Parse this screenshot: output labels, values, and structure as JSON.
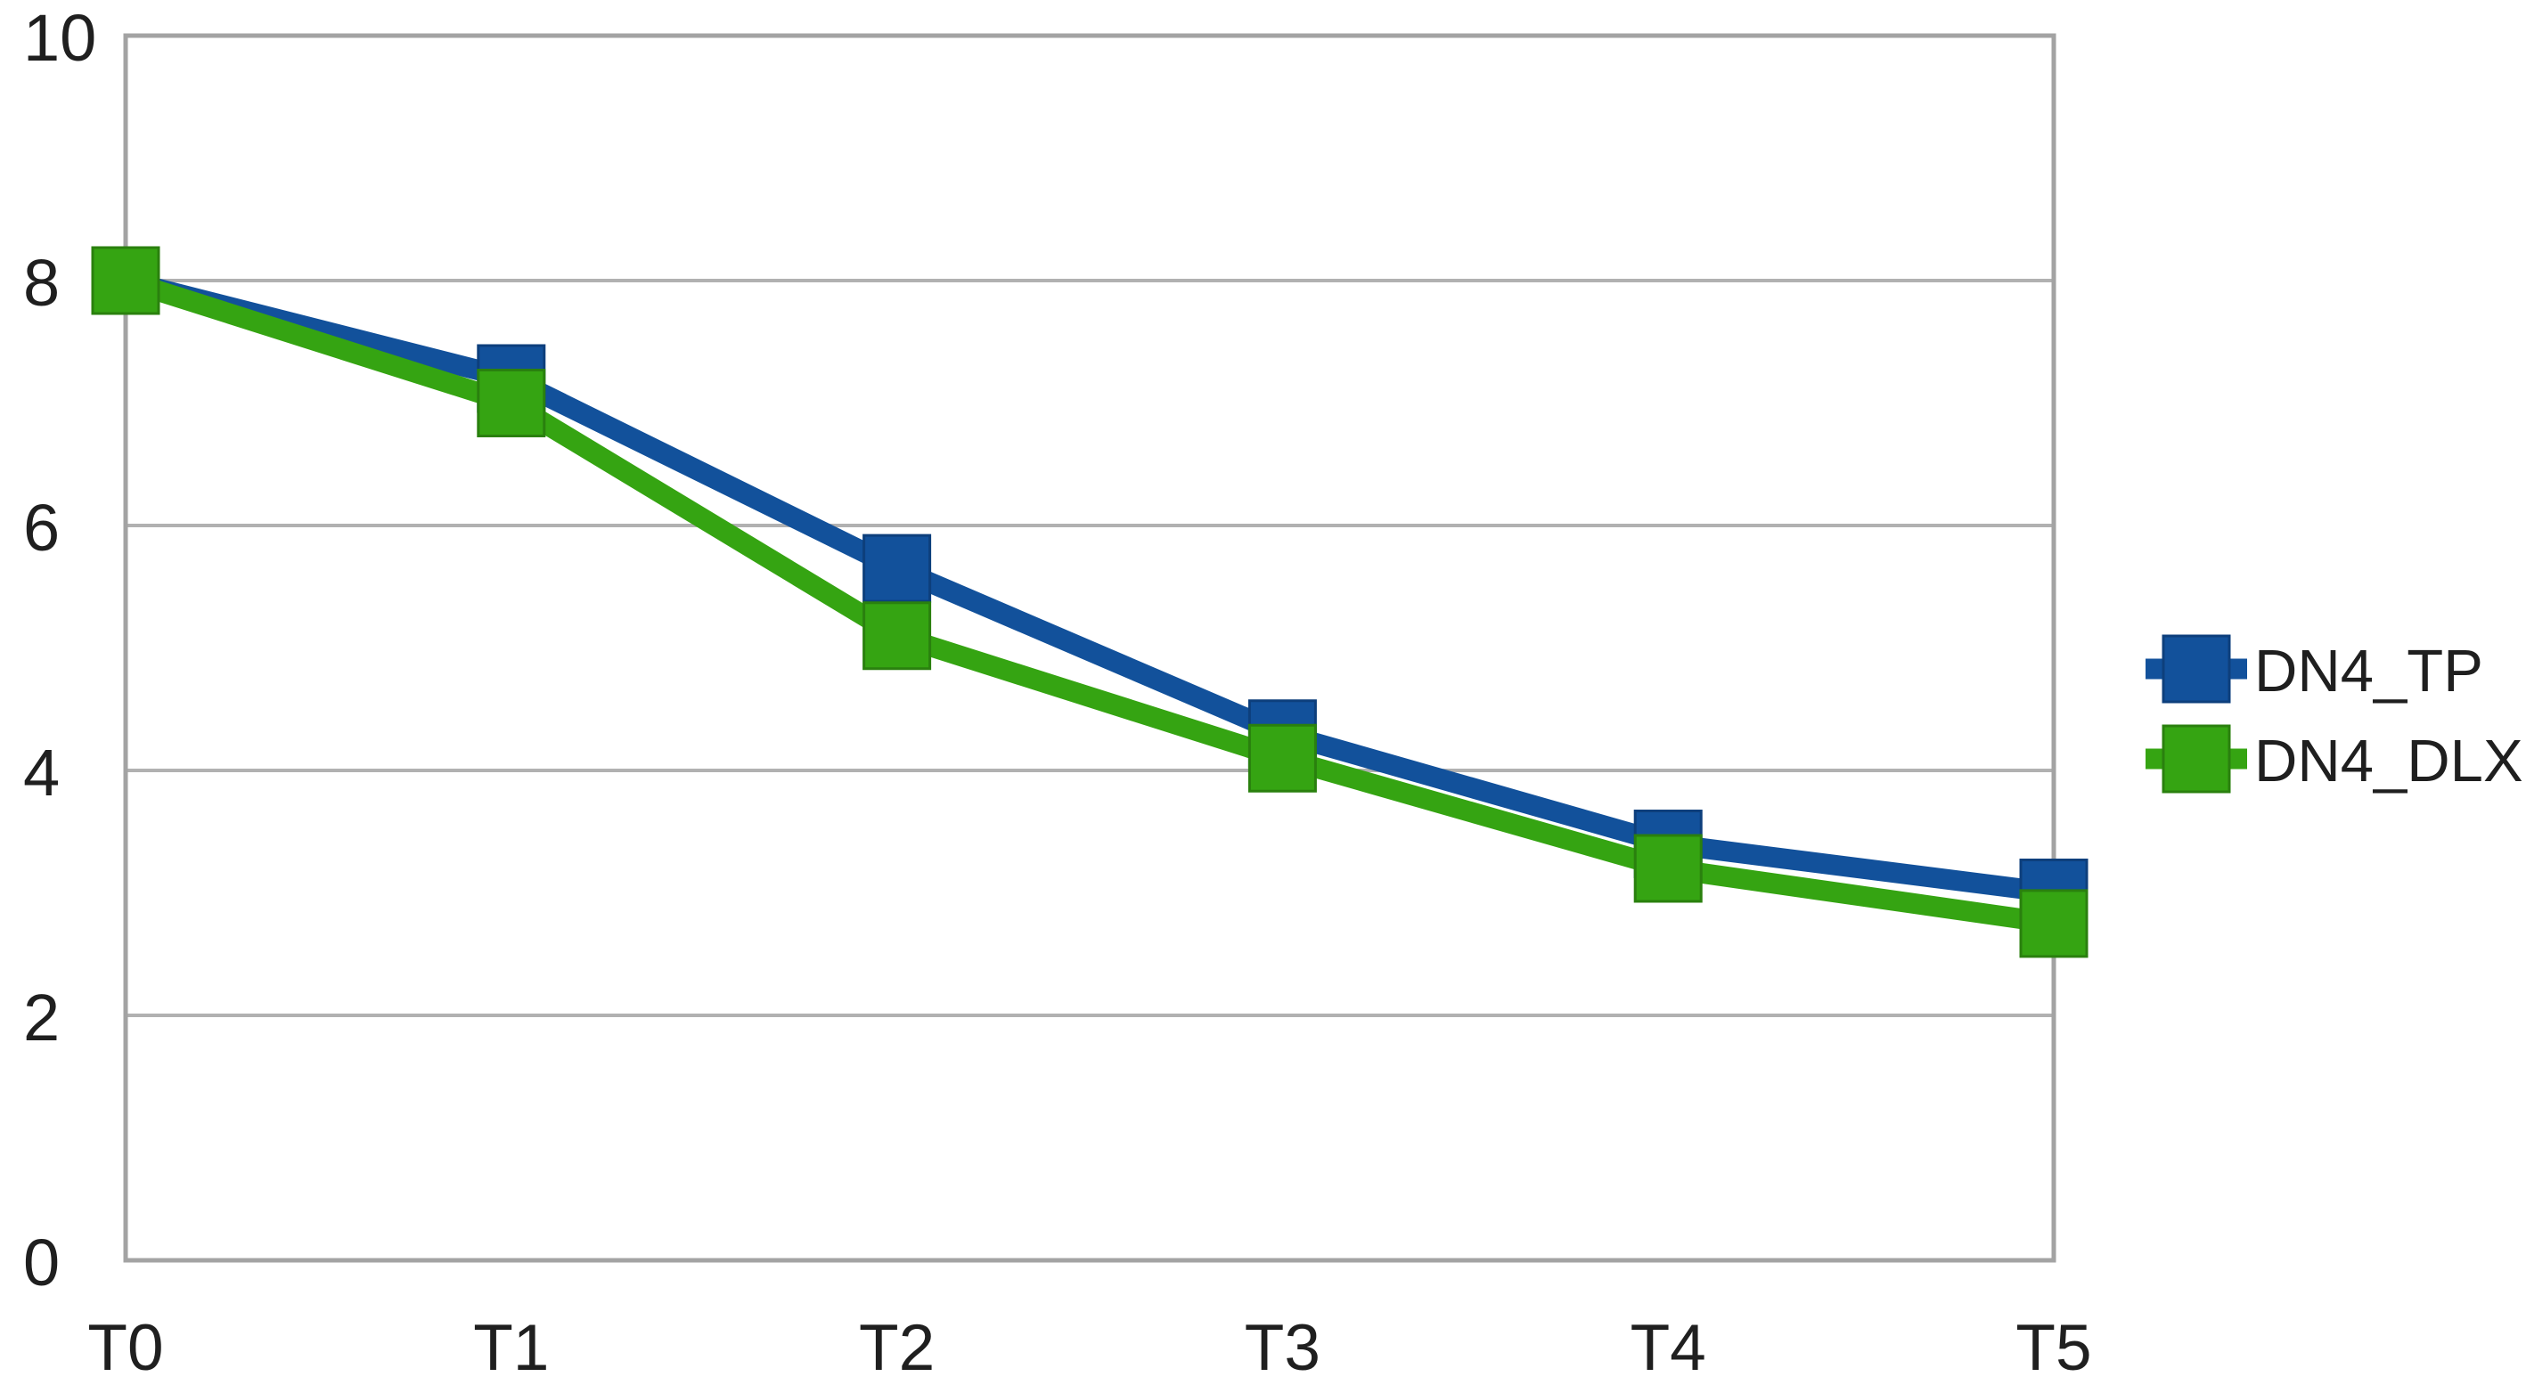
{
  "chart_data": {
    "type": "line",
    "categories": [
      "T0",
      "T1",
      "T2",
      "T3",
      "T4",
      "T5"
    ],
    "series": [
      {
        "name": "DN4_TP",
        "color": "#12519B",
        "marker_edge": "#0D3F7C",
        "marker": "square",
        "values": [
          8,
          7.2,
          5.65,
          4.3,
          3.4,
          3.0
        ]
      },
      {
        "name": "DN4_DLX",
        "color": "#35A412",
        "marker_edge": "#2A800E",
        "marker": "square",
        "values": [
          8,
          7.0,
          5.1,
          4.1,
          3.2,
          2.75
        ]
      }
    ],
    "title": "",
    "xlabel": "",
    "ylabel": "",
    "ylim": [
      0,
      10
    ],
    "yticks": [
      0,
      2,
      4,
      6,
      8,
      10
    ],
    "grid": true,
    "legend_position": "right",
    "colors": {
      "background": "#FFFFFF",
      "grid": "#B1B1B1",
      "plot_border": "#A3A3A3",
      "text": "#1F1F1F"
    }
  }
}
